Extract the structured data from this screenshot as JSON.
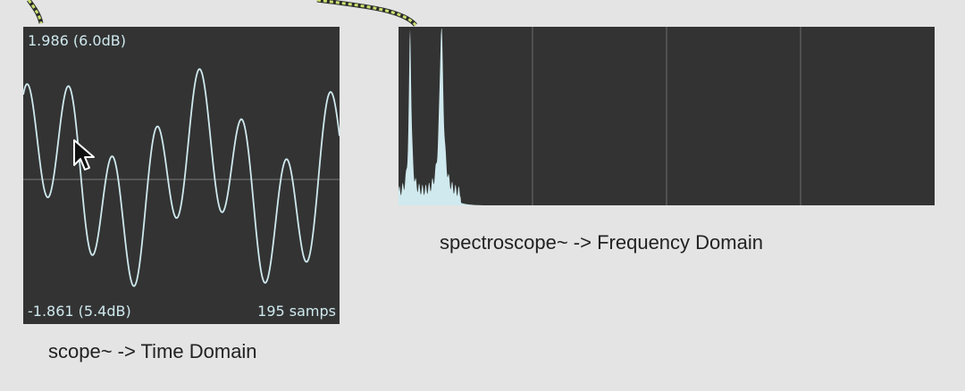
{
  "scope": {
    "max_label": "1.986 (6.0dB)",
    "min_label": "-1.861 (5.4dB)",
    "samples_label": "195 samps",
    "caption": "scope~ -> Time Domain",
    "trace_color": "#cfe9ee",
    "background_color": "#333333"
  },
  "spectroscope": {
    "caption": "spectroscope~ -> Frequency Domain",
    "fill_color": "#cfe9ee",
    "background_color": "#333333",
    "grid_color": "#5a5a5a"
  },
  "patch_cable_color": "#c9e06e",
  "cursor_icon": "arrow-pointer-icon"
}
